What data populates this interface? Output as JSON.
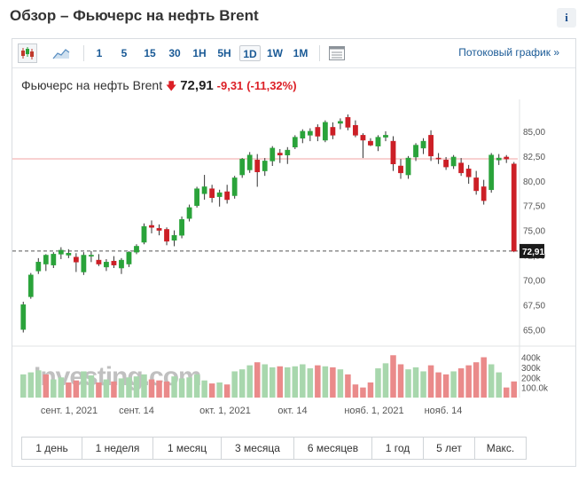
{
  "page": {
    "title": "Обзор – Фьючерс на нефть Brent",
    "info_label": "i"
  },
  "toolbar": {
    "timeframes": [
      "1",
      "5",
      "15",
      "30",
      "1H",
      "5H",
      "1D",
      "1W",
      "1M"
    ],
    "active_timeframe": "1D",
    "streaming_link": "Потоковый график »",
    "icons": [
      "candlestick-chart-icon",
      "area-chart-icon",
      "table-view-icon"
    ]
  },
  "quote": {
    "name": "Фьючерс на нефть Brent",
    "direction_icon": "down-arrow-icon",
    "price": "72,91",
    "change": "-9,31",
    "change_pct": "(-11,32%)"
  },
  "chart": {
    "current_price_label": "72,91",
    "watermark": "Investing.com"
  },
  "chart_data": {
    "type": "candlestick",
    "title": "",
    "y_ticks": [
      "85,00",
      "82,50",
      "80,00",
      "77,50",
      "75,00",
      "72,50",
      "70,00",
      "67,50",
      "65,00"
    ],
    "ylim": [
      63.5,
      87.5
    ],
    "x_ticks": [
      "сент. 1, 2021",
      "сент. 14",
      "окт. 1, 2021",
      "окт. 14",
      "нояб. 1, 2021",
      "нояб. 14"
    ],
    "volume_ticks": [
      "400k",
      "300k",
      "200k",
      "100.0k"
    ],
    "reference_line": 82.22,
    "current_price": 72.91,
    "candles": [
      {
        "o": 65.0,
        "h": 67.8,
        "l": 64.7,
        "c": 67.5
      },
      {
        "o": 68.3,
        "h": 70.7,
        "l": 68.1,
        "c": 70.5
      },
      {
        "o": 70.9,
        "h": 72.2,
        "l": 70.6,
        "c": 71.8
      },
      {
        "o": 71.6,
        "h": 72.6,
        "l": 70.9,
        "c": 72.5
      },
      {
        "o": 71.5,
        "h": 72.8,
        "l": 71.2,
        "c": 72.6
      },
      {
        "o": 72.6,
        "h": 73.3,
        "l": 72.1,
        "c": 73.0
      },
      {
        "o": 72.5,
        "h": 73.1,
        "l": 72.2,
        "c": 72.7
      },
      {
        "o": 72.3,
        "h": 72.7,
        "l": 70.8,
        "c": 71.8
      },
      {
        "o": 70.8,
        "h": 72.8,
        "l": 70.5,
        "c": 72.5
      },
      {
        "o": 72.4,
        "h": 72.9,
        "l": 71.8,
        "c": 72.5
      },
      {
        "o": 72.0,
        "h": 72.6,
        "l": 71.4,
        "c": 71.6
      },
      {
        "o": 71.3,
        "h": 72.1,
        "l": 70.9,
        "c": 71.8
      },
      {
        "o": 71.9,
        "h": 72.4,
        "l": 71.2,
        "c": 71.5
      },
      {
        "o": 71.2,
        "h": 72.2,
        "l": 70.6,
        "c": 72.0
      },
      {
        "o": 71.6,
        "h": 72.9,
        "l": 71.3,
        "c": 72.8
      },
      {
        "o": 72.8,
        "h": 73.6,
        "l": 72.6,
        "c": 73.4
      },
      {
        "o": 73.8,
        "h": 75.7,
        "l": 73.6,
        "c": 75.4
      },
      {
        "o": 75.5,
        "h": 76.0,
        "l": 74.7,
        "c": 75.3
      },
      {
        "o": 75.2,
        "h": 75.6,
        "l": 74.5,
        "c": 75.0
      },
      {
        "o": 75.1,
        "h": 75.3,
        "l": 73.5,
        "c": 73.9
      },
      {
        "o": 74.0,
        "h": 75.0,
        "l": 73.4,
        "c": 74.5
      },
      {
        "o": 74.5,
        "h": 76.4,
        "l": 74.2,
        "c": 76.1
      },
      {
        "o": 76.2,
        "h": 77.6,
        "l": 75.9,
        "c": 77.3
      },
      {
        "o": 77.5,
        "h": 79.4,
        "l": 77.3,
        "c": 79.2
      },
      {
        "o": 78.7,
        "h": 80.6,
        "l": 78.1,
        "c": 79.4
      },
      {
        "o": 79.2,
        "h": 79.6,
        "l": 77.8,
        "c": 78.3
      },
      {
        "o": 78.4,
        "h": 79.1,
        "l": 77.4,
        "c": 78.8
      },
      {
        "o": 78.9,
        "h": 79.6,
        "l": 77.7,
        "c": 78.1
      },
      {
        "o": 78.5,
        "h": 80.5,
        "l": 78.2,
        "c": 80.3
      },
      {
        "o": 80.6,
        "h": 82.3,
        "l": 80.3,
        "c": 82.2
      },
      {
        "o": 81.1,
        "h": 82.9,
        "l": 80.8,
        "c": 82.6
      },
      {
        "o": 82.1,
        "h": 82.7,
        "l": 79.4,
        "c": 80.9
      },
      {
        "o": 81.0,
        "h": 82.3,
        "l": 80.5,
        "c": 82.0
      },
      {
        "o": 82.0,
        "h": 83.5,
        "l": 81.5,
        "c": 83.3
      },
      {
        "o": 82.8,
        "h": 83.2,
        "l": 81.8,
        "c": 82.6
      },
      {
        "o": 82.6,
        "h": 83.4,
        "l": 81.7,
        "c": 83.1
      },
      {
        "o": 83.4,
        "h": 84.6,
        "l": 83.2,
        "c": 84.4
      },
      {
        "o": 84.3,
        "h": 85.2,
        "l": 83.8,
        "c": 85.0
      },
      {
        "o": 84.6,
        "h": 85.3,
        "l": 84.0,
        "c": 85.0
      },
      {
        "o": 85.4,
        "h": 85.7,
        "l": 84.0,
        "c": 84.5
      },
      {
        "o": 84.1,
        "h": 86.1,
        "l": 83.9,
        "c": 85.9
      },
      {
        "o": 85.4,
        "h": 85.9,
        "l": 84.2,
        "c": 84.6
      },
      {
        "o": 85.8,
        "h": 86.3,
        "l": 85.2,
        "c": 86.0
      },
      {
        "o": 86.4,
        "h": 86.7,
        "l": 85.1,
        "c": 85.4
      },
      {
        "o": 85.6,
        "h": 86.1,
        "l": 84.4,
        "c": 84.6
      },
      {
        "o": 84.6,
        "h": 84.8,
        "l": 82.3,
        "c": 84.1
      },
      {
        "o": 84.0,
        "h": 84.3,
        "l": 83.5,
        "c": 83.6
      },
      {
        "o": 83.5,
        "h": 84.6,
        "l": 83.0,
        "c": 84.4
      },
      {
        "o": 84.4,
        "h": 85.0,
        "l": 84.0,
        "c": 84.6
      },
      {
        "o": 84.0,
        "h": 84.5,
        "l": 81.0,
        "c": 81.7
      },
      {
        "o": 81.5,
        "h": 82.2,
        "l": 80.2,
        "c": 80.8
      },
      {
        "o": 80.6,
        "h": 82.5,
        "l": 80.2,
        "c": 82.3
      },
      {
        "o": 82.4,
        "h": 83.8,
        "l": 82.0,
        "c": 83.6
      },
      {
        "o": 83.3,
        "h": 84.3,
        "l": 82.7,
        "c": 84.0
      },
      {
        "o": 84.6,
        "h": 85.1,
        "l": 82.0,
        "c": 82.5
      },
      {
        "o": 82.3,
        "h": 82.8,
        "l": 81.7,
        "c": 82.2
      },
      {
        "o": 82.1,
        "h": 82.4,
        "l": 81.1,
        "c": 81.4
      },
      {
        "o": 81.5,
        "h": 82.6,
        "l": 81.2,
        "c": 82.4
      },
      {
        "o": 81.8,
        "h": 82.3,
        "l": 80.5,
        "c": 80.8
      },
      {
        "o": 81.2,
        "h": 81.6,
        "l": 79.7,
        "c": 80.4
      },
      {
        "o": 80.3,
        "h": 81.0,
        "l": 78.6,
        "c": 79.0
      },
      {
        "o": 79.4,
        "h": 80.1,
        "l": 77.6,
        "c": 78.0
      },
      {
        "o": 79.1,
        "h": 82.8,
        "l": 78.8,
        "c": 82.6
      },
      {
        "o": 82.1,
        "h": 82.7,
        "l": 81.6,
        "c": 82.3
      },
      {
        "o": 82.4,
        "h": 82.6,
        "l": 81.8,
        "c": 82.2
      },
      {
        "o": 81.7,
        "h": 81.9,
        "l": 72.8,
        "c": 72.9
      }
    ],
    "volume": [
      {
        "v": 230,
        "up": true
      },
      {
        "v": 250,
        "up": true
      },
      {
        "v": 270,
        "up": true
      },
      {
        "v": 230,
        "up": false
      },
      {
        "v": 180,
        "up": true
      },
      {
        "v": 200,
        "up": true
      },
      {
        "v": 150,
        "up": false
      },
      {
        "v": 170,
        "up": false
      },
      {
        "v": 260,
        "up": true
      },
      {
        "v": 220,
        "up": true
      },
      {
        "v": 150,
        "up": false
      },
      {
        "v": 180,
        "up": true
      },
      {
        "v": 160,
        "up": false
      },
      {
        "v": 190,
        "up": true
      },
      {
        "v": 200,
        "up": true
      },
      {
        "v": 210,
        "up": true
      },
      {
        "v": 230,
        "up": true
      },
      {
        "v": 180,
        "up": false
      },
      {
        "v": 170,
        "up": false
      },
      {
        "v": 160,
        "up": false
      },
      {
        "v": 210,
        "up": true
      },
      {
        "v": 190,
        "up": true
      },
      {
        "v": 200,
        "up": true
      },
      {
        "v": 230,
        "up": true
      },
      {
        "v": 170,
        "up": true
      },
      {
        "v": 140,
        "up": false
      },
      {
        "v": 150,
        "up": true
      },
      {
        "v": 130,
        "up": false
      },
      {
        "v": 260,
        "up": true
      },
      {
        "v": 280,
        "up": true
      },
      {
        "v": 320,
        "up": true
      },
      {
        "v": 350,
        "up": false
      },
      {
        "v": 330,
        "up": true
      },
      {
        "v": 300,
        "up": true
      },
      {
        "v": 310,
        "up": false
      },
      {
        "v": 300,
        "up": true
      },
      {
        "v": 310,
        "up": true
      },
      {
        "v": 330,
        "up": true
      },
      {
        "v": 290,
        "up": true
      },
      {
        "v": 320,
        "up": false
      },
      {
        "v": 310,
        "up": true
      },
      {
        "v": 300,
        "up": false
      },
      {
        "v": 280,
        "up": true
      },
      {
        "v": 230,
        "up": false
      },
      {
        "v": 130,
        "up": false
      },
      {
        "v": 100,
        "up": false
      },
      {
        "v": 150,
        "up": false
      },
      {
        "v": 290,
        "up": true
      },
      {
        "v": 340,
        "up": true
      },
      {
        "v": 420,
        "up": false
      },
      {
        "v": 330,
        "up": false
      },
      {
        "v": 280,
        "up": true
      },
      {
        "v": 300,
        "up": true
      },
      {
        "v": 260,
        "up": true
      },
      {
        "v": 320,
        "up": false
      },
      {
        "v": 250,
        "up": false
      },
      {
        "v": 230,
        "up": false
      },
      {
        "v": 260,
        "up": true
      },
      {
        "v": 290,
        "up": false
      },
      {
        "v": 320,
        "up": false
      },
      {
        "v": 350,
        "up": false
      },
      {
        "v": 400,
        "up": false
      },
      {
        "v": 330,
        "up": true
      },
      {
        "v": 250,
        "up": true
      },
      {
        "v": 100,
        "up": false
      },
      {
        "v": 160,
        "up": false
      }
    ]
  },
  "periods": [
    "1 день",
    "1 неделя",
    "1 месяц",
    "3 месяца",
    "6 месяцев",
    "1 год",
    "5 лет",
    "Макс."
  ],
  "colors": {
    "up": "#2aa33a",
    "down": "#cc1f26",
    "vol_up": "#a8d7ad",
    "vol_down": "#ea8a8a",
    "link": "#1a5a96",
    "ref_line": "#f0a3a3"
  }
}
